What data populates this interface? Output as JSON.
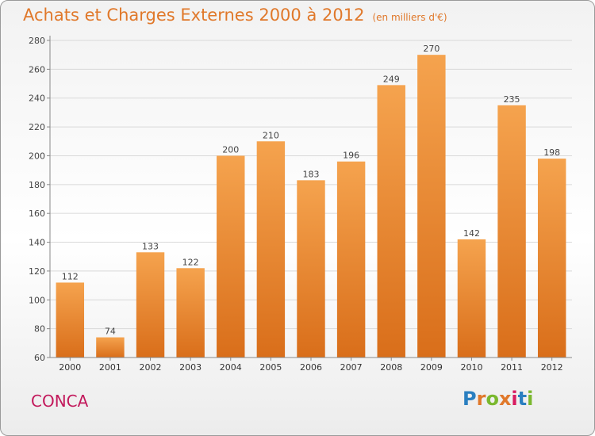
{
  "header": {
    "title": "Achats et Charges Externes 2000 à 2012",
    "unit": "(en milliers d'€)"
  },
  "footer": {
    "commune": "CONCA",
    "brand": "Proxiti",
    "brand_colors": [
      "#2a7fc0",
      "#e0782a",
      "#7ab82e",
      "#e0782a",
      "#d81b60",
      "#2a7fc0",
      "#7ab82e"
    ]
  },
  "colors": {
    "bar_top": "#f5a34e",
    "bar_bottom": "#d96e1a",
    "title": "#e0782a",
    "commune": "#c2185b"
  },
  "chart_data": {
    "type": "bar",
    "title": "Achats et Charges Externes 2000 à 2012",
    "subtitle": "(en milliers d'€)",
    "categories": [
      "2000",
      "2001",
      "2002",
      "2003",
      "2004",
      "2005",
      "2006",
      "2007",
      "2008",
      "2009",
      "2010",
      "2011",
      "2012"
    ],
    "values": [
      112,
      74,
      133,
      122,
      200,
      210,
      183,
      196,
      249,
      270,
      142,
      235,
      198
    ],
    "ylim": [
      60,
      280
    ],
    "yticks": [
      60,
      80,
      100,
      120,
      140,
      160,
      180,
      200,
      220,
      240,
      260,
      280
    ],
    "xlabel": "",
    "ylabel": "",
    "grid": true,
    "data_labels": true
  }
}
